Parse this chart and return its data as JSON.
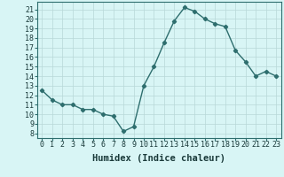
{
  "x": [
    0,
    1,
    2,
    3,
    4,
    5,
    6,
    7,
    8,
    9,
    10,
    11,
    12,
    13,
    14,
    15,
    16,
    17,
    18,
    19,
    20,
    21,
    22,
    23
  ],
  "y": [
    12.5,
    11.5,
    11.0,
    11.0,
    10.5,
    10.5,
    10.0,
    9.8,
    8.2,
    8.7,
    13.0,
    15.0,
    17.5,
    19.8,
    21.2,
    20.8,
    20.0,
    19.5,
    19.2,
    16.7,
    15.5,
    14.0,
    14.5,
    14.0
  ],
  "line_color": "#2e6e6e",
  "marker": "D",
  "marker_size": 2.2,
  "bg_color": "#d8f5f5",
  "grid_color": "#b8d8d8",
  "xlabel": "Humidex (Indice chaleur)",
  "xlabel_fontsize": 7.5,
  "tick_fontsize": 6.0,
  "xlim": [
    -0.5,
    23.5
  ],
  "ylim": [
    7.5,
    21.8
  ],
  "yticks": [
    8,
    9,
    10,
    11,
    12,
    13,
    14,
    15,
    16,
    17,
    18,
    19,
    20,
    21
  ],
  "xticks": [
    0,
    1,
    2,
    3,
    4,
    5,
    6,
    7,
    8,
    9,
    10,
    11,
    12,
    13,
    14,
    15,
    16,
    17,
    18,
    19,
    20,
    21,
    22,
    23
  ],
  "spine_color": "#2e6e6e",
  "linewidth": 1.0
}
